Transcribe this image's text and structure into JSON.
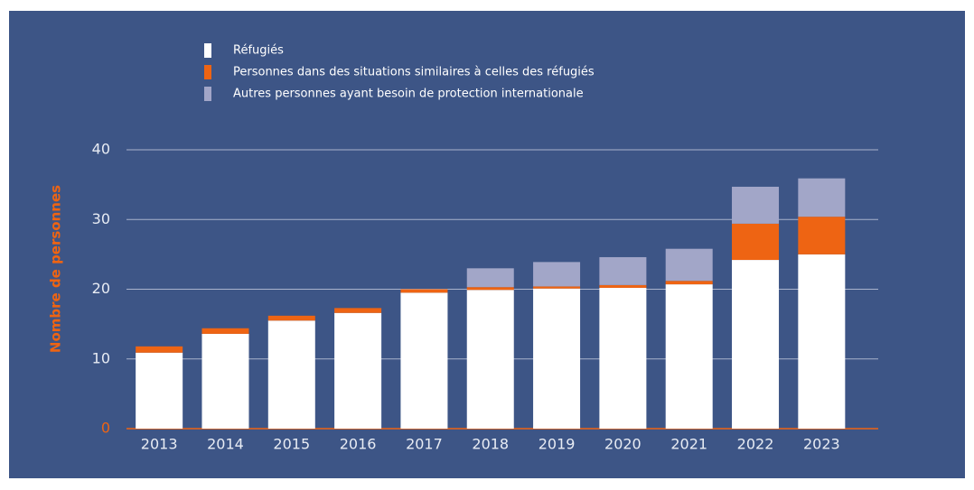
{
  "chart_data": {
    "type": "stacked_bar",
    "y_label": "Nombre de personnes",
    "categories": [
      "2013",
      "2014",
      "2015",
      "2016",
      "2017",
      "2018",
      "2019",
      "2020",
      "2021",
      "2022",
      "2023"
    ],
    "series": [
      {
        "name": "Réfugiés",
        "color": "#ffffff",
        "values": [
          10.9,
          13.6,
          15.5,
          16.6,
          19.5,
          19.9,
          20.1,
          20.2,
          20.7,
          24.2,
          25.0
        ]
      },
      {
        "name": "Personnes dans des situations similaires à celles des réfugiés",
        "color": "#ee6413",
        "values": [
          0.9,
          0.8,
          0.7,
          0.7,
          0.5,
          0.4,
          0.3,
          0.4,
          0.5,
          5.2,
          5.4
        ]
      },
      {
        "name": "Autres personnes ayant besoin de protection internationale",
        "color": "#a2a6c8",
        "values": [
          0,
          0,
          0,
          0,
          0,
          2.7,
          3.5,
          4.0,
          4.6,
          5.3,
          5.5
        ]
      }
    ],
    "ylim": [
      0,
      40
    ],
    "yticks": [
      0,
      10,
      20,
      30,
      40
    ],
    "grid": true
  }
}
